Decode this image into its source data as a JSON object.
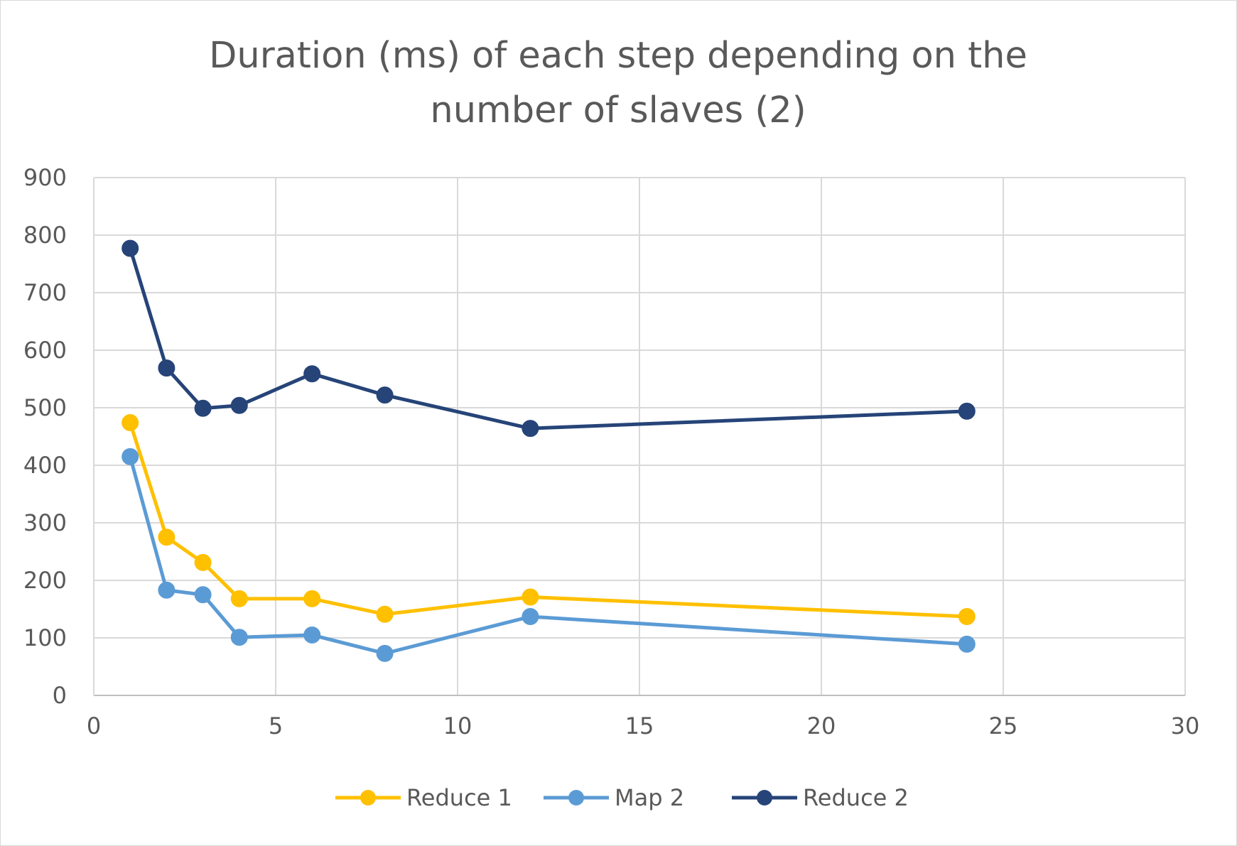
{
  "chart_data": {
    "type": "scatter",
    "title": "Duration (ms) of each step depending on the number of slaves (2)",
    "title_lines": [
      "Duration (ms) of each step depending on the",
      "number of slaves (2)"
    ],
    "xlabel": "",
    "ylabel": "",
    "xlim": [
      0,
      30
    ],
    "ylim": [
      0,
      900
    ],
    "x_ticks": [
      0,
      5,
      10,
      15,
      20,
      25,
      30
    ],
    "y_ticks": [
      0,
      100,
      200,
      300,
      400,
      500,
      600,
      700,
      800,
      900
    ],
    "grid": true,
    "legend_position": "bottom",
    "markers": true,
    "series": [
      {
        "name": "Reduce 1",
        "color": "#FFC000",
        "points": [
          [
            1,
            474
          ],
          [
            2,
            275
          ],
          [
            3,
            231
          ],
          [
            4,
            168
          ],
          [
            6,
            168
          ],
          [
            8,
            141
          ],
          [
            12,
            171
          ],
          [
            24,
            137
          ]
        ]
      },
      {
        "name": "Map 2",
        "color": "#5B9BD5",
        "points": [
          [
            1,
            415
          ],
          [
            2,
            183
          ],
          [
            3,
            175
          ],
          [
            4,
            101
          ],
          [
            6,
            105
          ],
          [
            8,
            73
          ],
          [
            12,
            137
          ],
          [
            24,
            89
          ]
        ]
      },
      {
        "name": "Reduce 2",
        "color": "#264478",
        "points": [
          [
            1,
            777
          ],
          [
            2,
            569
          ],
          [
            3,
            499
          ],
          [
            4,
            504
          ],
          [
            6,
            559
          ],
          [
            8,
            522
          ],
          [
            12,
            464
          ],
          [
            24,
            494
          ]
        ]
      }
    ]
  }
}
